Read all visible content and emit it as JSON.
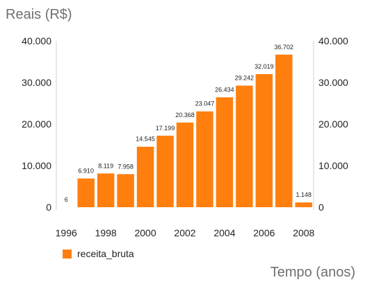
{
  "chart_data": {
    "type": "bar",
    "ylabel": "Reais (R$)",
    "xlabel": "Tempo (anos)",
    "x": [
      1996,
      1997,
      1998,
      1999,
      2000,
      2001,
      2002,
      2003,
      2004,
      2005,
      2006,
      2007,
      2008
    ],
    "x_ticks": [
      1996,
      1998,
      2000,
      2002,
      2004,
      2006,
      2008
    ],
    "x_tick_labels": [
      "1996",
      "1998",
      "2000",
      "2002",
      "2004",
      "2006",
      "2008"
    ],
    "ylim": [
      0,
      40000
    ],
    "y_ticks": [
      0,
      10000,
      20000,
      30000,
      40000
    ],
    "y_tick_labels": [
      "0",
      "10.000",
      "20.000",
      "30.000",
      "40.000"
    ],
    "secondary_y_axis": true,
    "grid": false,
    "legend_position": "bottom-left",
    "series": [
      {
        "name": "receita_bruta",
        "color": "#ff7f0e",
        "values": [
          6,
          6910,
          8119,
          7958,
          14545,
          17199,
          20368,
          23047,
          26434,
          29242,
          32019,
          36702,
          1148
        ],
        "data_labels": [
          "6",
          "6.910",
          "8.119",
          "7.958",
          "14.545",
          "17.199",
          "20.368",
          "23.047",
          "26.434",
          "29.242",
          "32.019",
          "36.702",
          "1.148"
        ]
      }
    ]
  }
}
